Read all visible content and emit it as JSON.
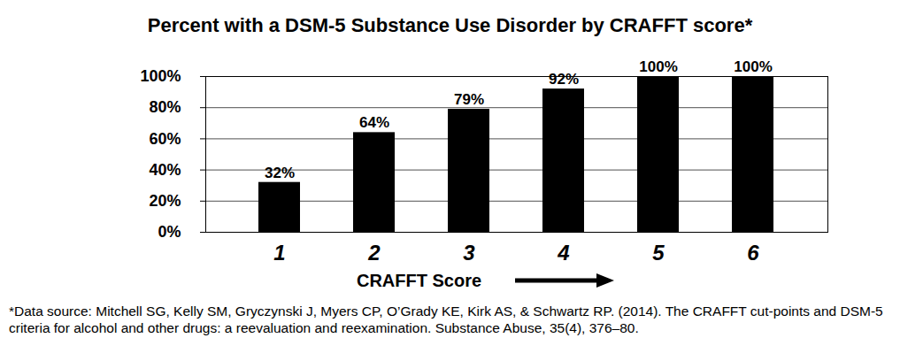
{
  "chart_data": {
    "type": "bar",
    "title": "Percent with a DSM-5 Substance Use Disorder by CRAFFT score*",
    "x_label": "CRAFFT Score",
    "caption": "*Data source: Mitchell SG, Kelly SM, Gryczynski J, Myers CP, O’Grady KE, Kirk AS, & Schwartz RP. (2014). The CRAFFT cut-points and DSM-5 criteria for alcohol and other drugs: a reevaluation and reexamination. Substance Abuse, 35(4), 376–80.",
    "categories": [
      "1",
      "2",
      "3",
      "4",
      "5",
      "6"
    ],
    "values": [
      32,
      64,
      79,
      92,
      100,
      100
    ],
    "value_labels": [
      "32%",
      "64%",
      "79%",
      "92%",
      "100%",
      "100%"
    ],
    "color": "#000000",
    "ylim": [
      0,
      100
    ],
    "yticks": [
      {
        "value": 0,
        "label": "0%"
      },
      {
        "value": 20,
        "label": "20%"
      },
      {
        "value": 40,
        "label": "40%"
      },
      {
        "value": 60,
        "label": "60%"
      },
      {
        "value": 80,
        "label": "80%"
      },
      {
        "value": 100,
        "label": "100%"
      }
    ],
    "grid": true,
    "data_labels": true
  }
}
